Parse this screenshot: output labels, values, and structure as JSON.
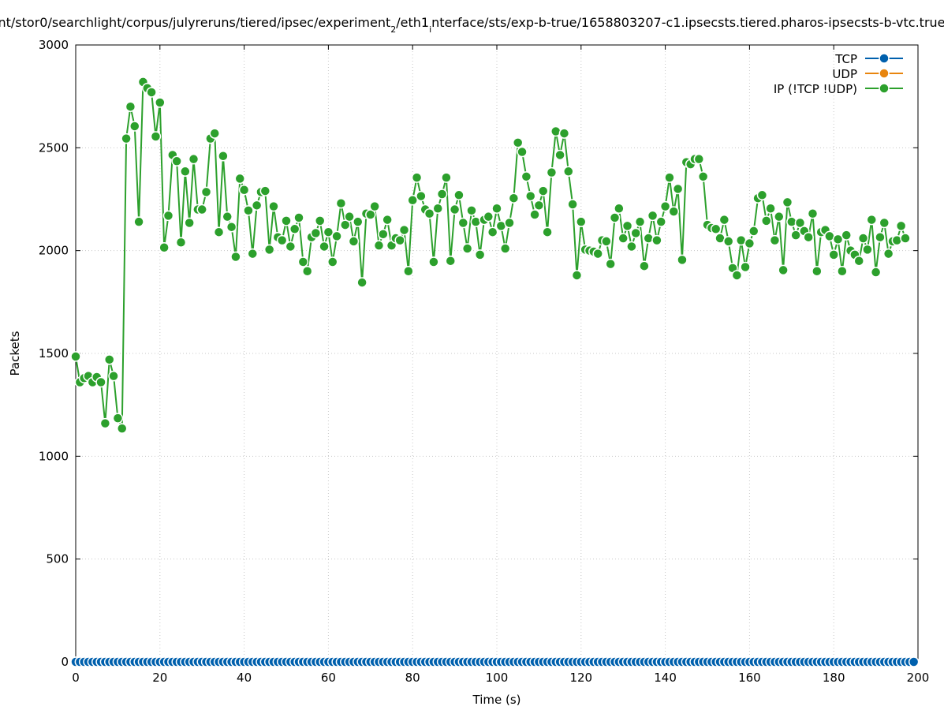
{
  "chart_data": {
    "type": "line",
    "title_parts": [
      "nt/stor0/searchlight/corpus/julyreruns/tiered/ipsec/experiment",
      "2",
      "/eth1",
      "i",
      "nterface/sts/exp-b-true/1658803207-c1.ipsecsts.tiered.pharos-ipsecsts-b-vtc.true"
    ],
    "xlabel": "Time (s)",
    "ylabel": "Packets",
    "xlim": [
      0,
      200
    ],
    "ylim": [
      0,
      3000
    ],
    "x_ticks": [
      0,
      20,
      40,
      60,
      80,
      100,
      120,
      140,
      160,
      180,
      200
    ],
    "y_ticks": [
      0,
      500,
      1000,
      1500,
      2000,
      2500,
      3000
    ],
    "grid": true,
    "legend_position": "top-right",
    "series": [
      {
        "name": "TCP",
        "color": "#0060ad",
        "values": [
          0,
          0,
          0,
          0,
          0,
          0,
          0,
          0,
          0,
          0,
          0,
          0,
          0,
          0,
          0,
          0,
          0,
          0,
          0,
          0,
          0,
          0,
          0,
          0,
          0,
          0,
          0,
          0,
          0,
          0,
          0,
          0,
          0,
          0,
          0,
          0,
          0,
          0,
          0,
          0,
          0,
          0,
          0,
          0,
          0,
          0,
          0,
          0,
          0,
          0,
          0,
          0,
          0,
          0,
          0,
          0,
          0,
          0,
          0,
          0,
          0,
          0,
          0,
          0,
          0,
          0,
          0,
          0,
          0,
          0,
          0,
          0,
          0,
          0,
          0,
          0,
          0,
          0,
          0,
          0,
          0,
          0,
          0,
          0,
          0,
          0,
          0,
          0,
          0,
          0,
          0,
          0,
          0,
          0,
          0,
          0,
          0,
          0,
          0,
          0,
          0,
          0,
          0,
          0,
          0,
          0,
          0,
          0,
          0,
          0,
          0,
          0,
          0,
          0,
          0,
          0,
          0,
          0,
          0,
          0,
          0,
          0,
          0,
          0,
          0,
          0,
          0,
          0,
          0,
          0,
          0,
          0,
          0,
          0,
          0,
          0,
          0,
          0,
          0,
          0,
          0,
          0,
          0,
          0,
          0,
          0,
          0,
          0,
          0,
          0,
          0,
          0,
          0,
          0,
          0,
          0,
          0,
          0,
          0,
          0,
          0,
          0,
          0,
          0,
          0,
          0,
          0,
          0,
          0,
          0,
          0,
          0,
          0,
          0,
          0,
          0,
          0,
          0,
          0,
          0,
          0,
          0,
          0,
          0,
          0,
          0,
          0,
          0,
          0,
          0,
          0,
          0,
          0,
          0,
          0,
          0,
          0,
          0,
          0,
          0
        ]
      },
      {
        "name": "UDP",
        "color": "#e8850e",
        "values": [
          0,
          0,
          0,
          0,
          0,
          0,
          0,
          0,
          0,
          0,
          0,
          0,
          0,
          0,
          0,
          0,
          0,
          0,
          0,
          0,
          0,
          0,
          0,
          0,
          0,
          0,
          0,
          0,
          0,
          0,
          0,
          0,
          0,
          0,
          0,
          0,
          0,
          0,
          0,
          0,
          0,
          0,
          0,
          0,
          0,
          0,
          0,
          0,
          0,
          0,
          0,
          0,
          0,
          0,
          0,
          0,
          0,
          0,
          0,
          0,
          0,
          0,
          0,
          0,
          0,
          0,
          0,
          0,
          0,
          0,
          0,
          0,
          0,
          0,
          0,
          0,
          0,
          0,
          0,
          0,
          0,
          0,
          0,
          0,
          0,
          0,
          0,
          0,
          0,
          0,
          0,
          0,
          0,
          0,
          0,
          0,
          0,
          0,
          0,
          0,
          0,
          0,
          0,
          0,
          0,
          0,
          0,
          0,
          0,
          0,
          0,
          0,
          0,
          0,
          0,
          0,
          0,
          0,
          0,
          0,
          0,
          0,
          0,
          0,
          0,
          0,
          0,
          0,
          0,
          0,
          0,
          0,
          0,
          0,
          0,
          0,
          0,
          0,
          0,
          0,
          0,
          0,
          0,
          0,
          0,
          0,
          0,
          0,
          0,
          0,
          0,
          0,
          0,
          0,
          0,
          0,
          0,
          0,
          0,
          0,
          0,
          0,
          0,
          0,
          0,
          0,
          0,
          0,
          0,
          0,
          0,
          0,
          0,
          0,
          0,
          0,
          0,
          0,
          0,
          0,
          0,
          0,
          0,
          0,
          0,
          0,
          0,
          0,
          0,
          0,
          0,
          0,
          0,
          0,
          0,
          0,
          0,
          0,
          0,
          0
        ]
      },
      {
        "name": "IP (!TCP  !UDP)",
        "color": "#2ca02c",
        "values": [
          1485,
          1360,
          1380,
          1390,
          1360,
          1385,
          1360,
          1160,
          1470,
          1390,
          1185,
          1135,
          2545,
          2700,
          2605,
          2140,
          2820,
          2790,
          2770,
          2555,
          2720,
          2015,
          2170,
          2465,
          2435,
          2040,
          2385,
          2135,
          2445,
          2200,
          2200,
          2285,
          2545,
          2570,
          2090,
          2460,
          2165,
          2115,
          1970,
          2350,
          2295,
          2195,
          1985,
          2220,
          2285,
          2290,
          2005,
          2215,
          2065,
          2050,
          2145,
          2020,
          2105,
          2160,
          1945,
          1900,
          2065,
          2085,
          2145,
          2020,
          2090,
          1945,
          2070,
          2230,
          2125,
          2165,
          2045,
          2140,
          1845,
          2180,
          2175,
          2215,
          2025,
          2080,
          2150,
          2025,
          2060,
          2050,
          2100,
          1900,
          2245,
          2355,
          2265,
          2200,
          2180,
          1945,
          2205,
          2275,
          2355,
          1950,
          2200,
          2270,
          2135,
          2010,
          2195,
          2140,
          1980,
          2150,
          2165,
          2090,
          2205,
          2120,
          2010,
          2135,
          2255,
          2525,
          2480,
          2360,
          2265,
          2175,
          2220,
          2290,
          2090,
          2380,
          2580,
          2465,
          2570,
          2385,
          2225,
          1880,
          2140,
          2005,
          2000,
          1995,
          1985,
          2050,
          2045,
          1935,
          2160,
          2205,
          2060,
          2120,
          2020,
          2085,
          2140,
          1925,
          2060,
          2170,
          2050,
          2140,
          2215,
          2355,
          2190,
          2300,
          1955,
          2430,
          2420,
          2445,
          2445,
          2360,
          2125,
          2110,
          2105,
          2060,
          2150,
          2045,
          1915,
          1880,
          2050,
          1920,
          2035,
          2095,
          2255,
          2270,
          2145,
          2205,
          2050,
          2165,
          1905,
          2235,
          2140,
          2075,
          2135,
          2095,
          2065,
          2180,
          1900,
          2090,
          2100,
          2070,
          1980,
          2055,
          1900,
          2075,
          2000,
          1980,
          1950,
          2060,
          2005,
          2150,
          1895,
          2065,
          2135,
          1985,
          2045,
          2050,
          2120,
          2060
        ]
      }
    ]
  }
}
